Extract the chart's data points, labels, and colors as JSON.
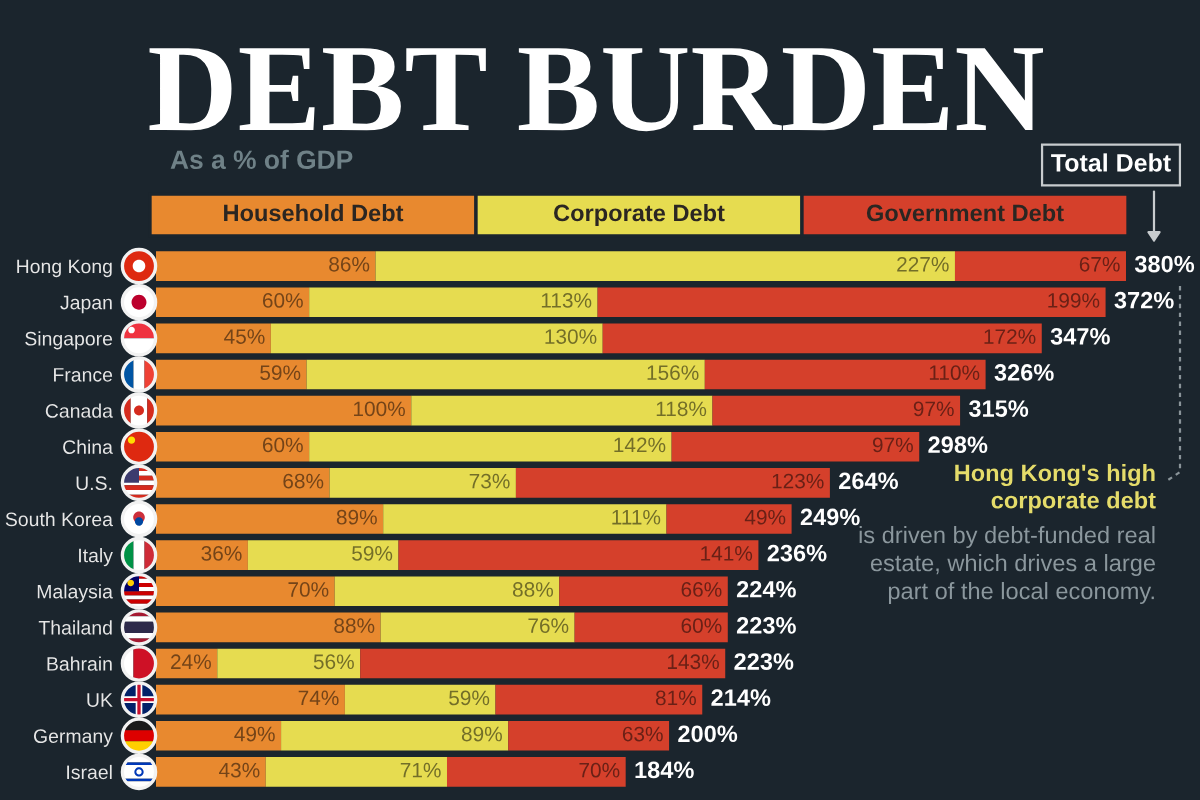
{
  "chart_data": {
    "type": "bar",
    "orientation": "horizontal",
    "stacked": true,
    "title": "DEBT BURDEN",
    "subtitle": "As a % of GDP",
    "categories": [
      "Hong Kong",
      "Japan",
      "Singapore",
      "France",
      "Canada",
      "China",
      "U.S.",
      "South Korea",
      "Italy",
      "Malaysia",
      "Thailand",
      "Bahrain",
      "UK",
      "Germany",
      "Israel"
    ],
    "series": [
      {
        "name": "Household Debt",
        "color": "#e8892f",
        "values": [
          86,
          60,
          45,
          59,
          100,
          60,
          68,
          89,
          36,
          70,
          88,
          24,
          74,
          49,
          43
        ],
        "value_labels": [
          "86%",
          "60%",
          "45%",
          "59%",
          "100%",
          "60%",
          "68%",
          "89%",
          "36%",
          "70%",
          "88%",
          "24%",
          "74%",
          "49%",
          "43%"
        ]
      },
      {
        "name": "Corporate Debt",
        "color": "#e6dc50",
        "values": [
          227,
          113,
          130,
          156,
          118,
          142,
          73,
          111,
          59,
          88,
          76,
          56,
          59,
          89,
          71
        ],
        "value_labels": [
          "227%",
          "113%",
          "130%",
          "156%",
          "118%",
          "142%",
          "73%",
          "111%",
          "59%",
          "88%",
          "76%",
          "56%",
          "59%",
          "89%",
          "71%"
        ]
      },
      {
        "name": "Government Debt",
        "color": "#d5402b",
        "values": [
          67,
          199,
          172,
          110,
          97,
          97,
          123,
          49,
          141,
          66,
          60,
          143,
          81,
          63,
          70
        ],
        "value_labels": [
          "67%",
          "199%",
          "172%",
          "110%",
          "97%",
          "97%",
          "123%",
          "49%",
          "141%",
          "66%",
          "60%",
          "143%",
          "81%",
          "63%",
          "70%"
        ]
      }
    ],
    "totals": [
      "380%",
      "372%",
      "347%",
      "326%",
      "315%",
      "298%",
      "264%",
      "249%",
      "236%",
      "224%",
      "223%",
      "223%",
      "214%",
      "200%",
      "184%"
    ],
    "annotations": [
      "Total Debt",
      "Hong Kong's high corporate debt",
      "is driven by debt-funded real estate, which drives a large part of the local economy."
    ],
    "legend": "top",
    "tick_labels": "y",
    "grid": false
  }
}
